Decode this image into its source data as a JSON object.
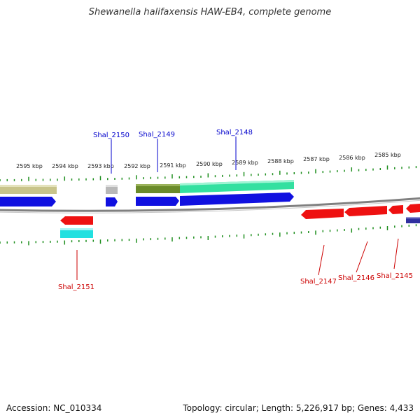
{
  "title": "Shewanella halifaxensis HAW-EB4, complete genome",
  "footer": {
    "accession": "Accession: NC_010334",
    "summary": "Topology: circular; Length: 5,226,917 bp; Genes: 4,433"
  },
  "colors": {
    "tick": "#1f8f1f",
    "backbone": "#808080",
    "forward_label": "#0000cc",
    "reverse_label": "#cc0000"
  },
  "scale_ticks": [
    "2595 kbp",
    "2594 kbp",
    "2593 kbp",
    "2592 kbp",
    "2591 kbp",
    "2590 kbp",
    "2589 kbp",
    "2588 kbp",
    "2587 kbp",
    "2586 kbp",
    "2585 kbp"
  ],
  "forward_gene_labels": [
    "Shal_2150",
    "Shal_2149",
    "Shal_2148"
  ],
  "reverse_gene_labels": [
    "Shal_2151",
    "Shal_2147",
    "Shal_2146",
    "Shal_2145"
  ],
  "feature_colors": {
    "tan": "#c8c48a",
    "gray": "#b8b8b8",
    "olive": "#6a8a2a",
    "mint": "#33e0a0",
    "blue": "#1010e0",
    "red": "#ee1111",
    "cyan": "#22e0e0",
    "navy": "#3030a0"
  }
}
